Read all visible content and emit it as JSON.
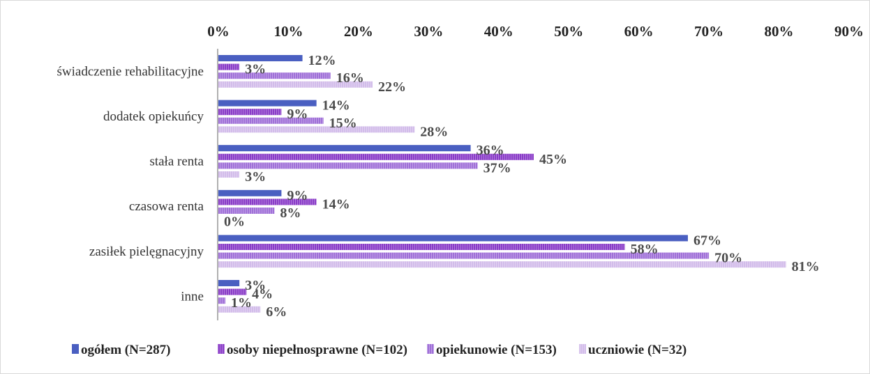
{
  "chart_data": {
    "type": "bar",
    "orientation": "horizontal",
    "categories": [
      "świadczenie rehabilitacyjne",
      "dodatek opiekuńcy",
      "stała renta",
      "czasowa renta",
      "zasiłek pielęgnacyjny",
      "inne"
    ],
    "series": [
      {
        "name": "ogółem (N=287)",
        "values": [
          12,
          14,
          36,
          9,
          67,
          3
        ],
        "labels": [
          "12%",
          "14%",
          "36%",
          "9%",
          "67%",
          "3%"
        ],
        "color": "#4a5fc1"
      },
      {
        "name": "osoby niepełnosprawne  (N=102)",
        "values": [
          3,
          9,
          45,
          14,
          58,
          4
        ],
        "labels": [
          "3%",
          "9%",
          "45%",
          "14%",
          "58%",
          "4%"
        ],
        "color": "#8a3cc8"
      },
      {
        "name": "opiekunowie (N=153)",
        "values": [
          16,
          15,
          37,
          8,
          70,
          1
        ],
        "labels": [
          "16%",
          "15%",
          "37%",
          "8%",
          "70%",
          "1%"
        ],
        "color": "#a070d8"
      },
      {
        "name": "uczniowie (N=32)",
        "values": [
          22,
          28,
          3,
          0,
          81,
          6
        ],
        "labels": [
          "22%",
          "28%",
          "3%",
          "0%",
          "81%",
          "6%"
        ],
        "color": "#d2bcea"
      }
    ],
    "xlim": [
      0,
      90
    ],
    "x_ticks": [
      0,
      10,
      20,
      30,
      40,
      50,
      60,
      70,
      80,
      90
    ],
    "x_tick_labels": [
      "0%",
      "10%",
      "20%",
      "30%",
      "40%",
      "50%",
      "60%",
      "70%",
      "80%",
      "90%"
    ],
    "x_axis_position": "top",
    "grid": false,
    "legend_position": "bottom",
    "title": "",
    "xlabel": "",
    "ylabel": ""
  }
}
